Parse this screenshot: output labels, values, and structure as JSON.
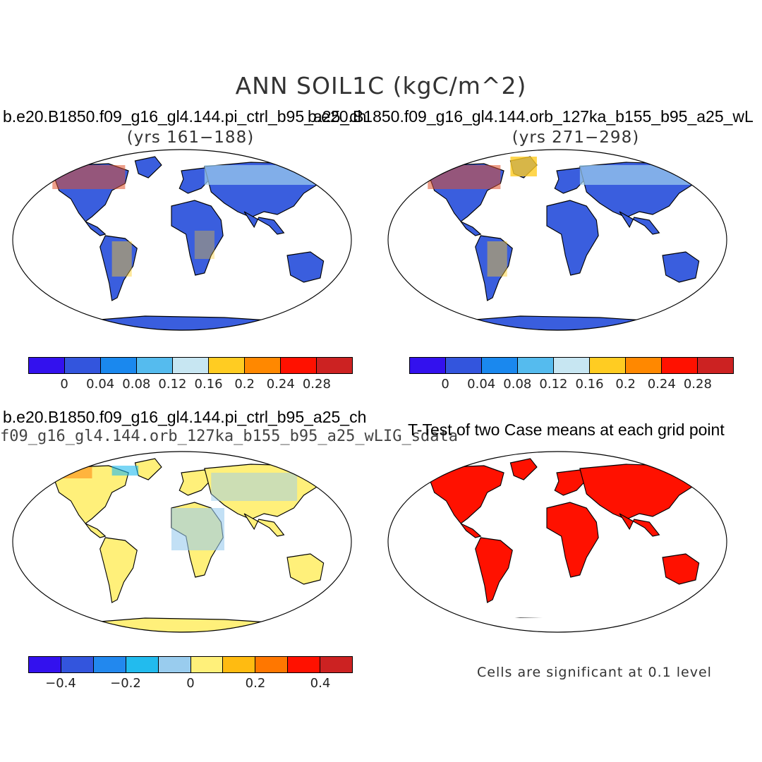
{
  "title": "ANN SOIL1C (kgC/m^2)",
  "panels": {
    "top_left": {
      "case": "b.e20.B1850.f09_g16_gl4.144.pi_ctrl_b95_a25_ch",
      "years": "(yrs 161−188)"
    },
    "top_right": {
      "case": "b.e20.B1850.f09_g16_gl4.144.orb_127ka_b155_b95_a25_wL",
      "years": "(yrs 271−298)"
    },
    "bottom_left": {
      "case": "b.e20.B1850.f09_g16_gl4.144.pi_ctrl_b95_a25_ch",
      "subtitle": "f09_g16_gl4.144.orb_127ka_b155_b95_a25_wLIG_sdata"
    },
    "bottom_right": {
      "title": "T-Test of two Case means at each grid point",
      "note": "Cells are significant at 0.1 level"
    }
  },
  "colorbars": {
    "absolute": {
      "colors": [
        "#3311ee",
        "#3355dd",
        "#1a88ee",
        "#55bbee",
        "#c7e6f2",
        "#ffcc22",
        "#ff8800",
        "#ff1100",
        "#cc2222"
      ],
      "labels": [
        "0",
        "0.04",
        "0.08",
        "0.12",
        "0.16",
        "0.2",
        "0.24",
        "0.28"
      ]
    },
    "difference": {
      "colors": [
        "#3311ee",
        "#3355dd",
        "#2288ee",
        "#22bbee",
        "#99ccee",
        "#fff07a",
        "#ffbb11",
        "#ff7700",
        "#ff1100",
        "#cc2222"
      ],
      "labels": [
        "−0.4",
        "−0.2",
        "0",
        "0.2",
        "0.4"
      ]
    }
  }
}
